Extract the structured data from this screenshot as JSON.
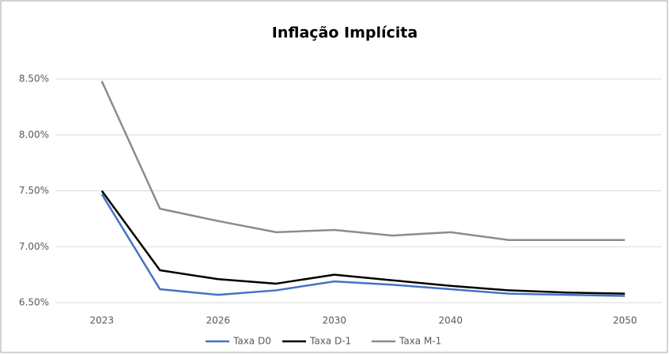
{
  "chart_data": {
    "type": "line",
    "title": "Inflação Implícita",
    "categories": [
      "2023",
      null,
      "2026",
      null,
      "2030",
      null,
      "2040",
      null,
      null,
      "2050"
    ],
    "series": [
      {
        "name": "Taxa D0",
        "color": "#4472c4",
        "values": [
          7.47,
          6.62,
          6.57,
          6.61,
          6.69,
          6.66,
          6.62,
          6.58,
          6.57,
          6.56
        ]
      },
      {
        "name": "Taxa D-1",
        "color": "#000000",
        "values": [
          7.5,
          6.79,
          6.71,
          6.67,
          6.75,
          6.7,
          6.65,
          6.61,
          6.59,
          6.58
        ]
      },
      {
        "name": "Taxa M-1",
        "color": "#8c8c8c",
        "values": [
          8.48,
          7.34,
          7.23,
          7.13,
          7.15,
          7.1,
          7.13,
          7.06,
          7.06,
          7.06
        ]
      }
    ],
    "ylim": [
      6.5,
      8.5
    ],
    "yticks": [
      {
        "value": 6.5,
        "label": "6.50%"
      },
      {
        "value": 7.0,
        "label": "7.00%"
      },
      {
        "value": 7.5,
        "label": "7.50%"
      },
      {
        "value": 8.0,
        "label": "8.00%"
      },
      {
        "value": 8.5,
        "label": "8.50%"
      }
    ],
    "grid": true,
    "legend": "bottom"
  }
}
